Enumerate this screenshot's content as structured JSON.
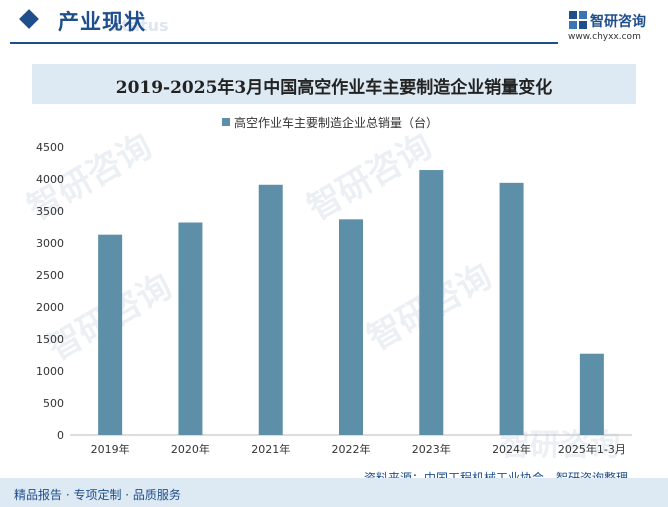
{
  "header": {
    "section_title": "产业现状",
    "section_subtitle": "Status",
    "brand_name": "智研咨询",
    "brand_url": "www.chyxx.com"
  },
  "chart_data": {
    "type": "bar",
    "title": "2019-2025年3月中国高空作业车主要制造企业销量变化",
    "categories": [
      "2019年",
      "2020年",
      "2021年",
      "2022年",
      "2023年",
      "2024年",
      "2025年1-3月"
    ],
    "series": [
      {
        "name": "高空作业车主要制造企业总销量（台）",
        "values": [
          3130,
          3320,
          3910,
          3370,
          4140,
          3940,
          1270
        ]
      }
    ],
    "ylim": [
      0,
      4500
    ],
    "yticks": [
      0,
      500,
      1000,
      1500,
      2000,
      2500,
      3000,
      3500,
      4000,
      4500
    ],
    "grid": false,
    "legend": "top-center",
    "bar_color": "#5d8fa8"
  },
  "watermark": {
    "text": "智研咨询"
  },
  "footer": {
    "left": "精品报告 · 专项定制 · 品质服务",
    "source": "资料来源：中国工程机械工业协会，智研咨询整理"
  },
  "colors": {
    "accent": "#1f4e8c",
    "title_band": "#dde9f3",
    "bar": "#5d8fa8"
  }
}
